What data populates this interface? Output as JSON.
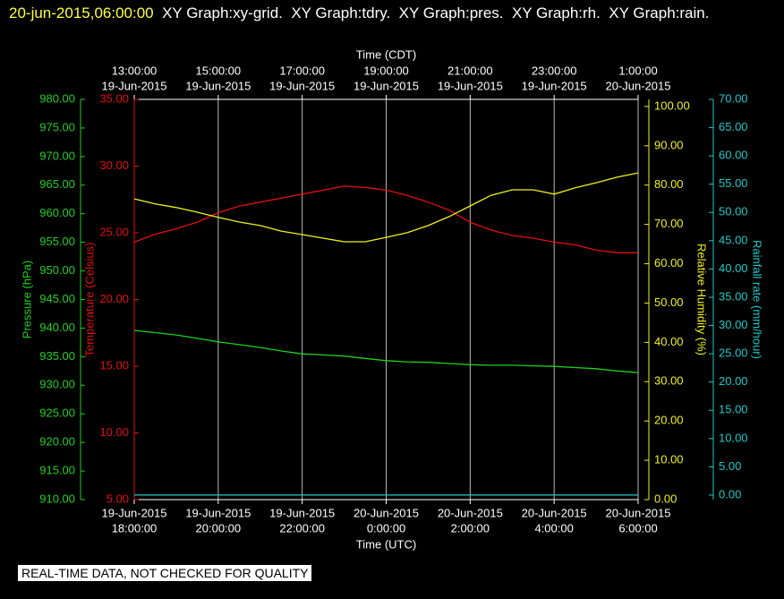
{
  "chart_data": {
    "type": "line",
    "title": "20-jun-2015,06:00:00",
    "subtitle": "XY Graph:xy-grid.  XY Graph:tdry.  XY Graph:pres.  XY Graph:rh.  XY Graph:rain.",
    "footer": "REAL-TIME DATA, NOT CHECKED FOR QUALITY",
    "xlabel": "Time (UTC)",
    "x2label": "Time (CDT)",
    "grid": true,
    "xlim": [
      0,
      12
    ],
    "xticks": [
      {
        "value": 0,
        "label": "18:00:00",
        "date": "19-Jun-2015"
      },
      {
        "value": 2,
        "label": "20:00:00",
        "date": "19-Jun-2015"
      },
      {
        "value": 4,
        "label": "22:00:00",
        "date": "19-Jun-2015"
      },
      {
        "value": 6,
        "label": "0:00:00",
        "date": "20-Jun-2015"
      },
      {
        "value": 8,
        "label": "2:00:00",
        "date": "20-Jun-2015"
      },
      {
        "value": 10,
        "label": "4:00:00",
        "date": "20-Jun-2015"
      },
      {
        "value": 12,
        "label": "6:00:00",
        "date": "20-Jun-2015"
      }
    ],
    "x2ticks": [
      {
        "value": 0,
        "label": "13:00:00",
        "date": "19-Jun-2015"
      },
      {
        "value": 2,
        "label": "15:00:00",
        "date": "19-Jun-2015"
      },
      {
        "value": 4,
        "label": "17:00:00",
        "date": "19-Jun-2015"
      },
      {
        "value": 6,
        "label": "19:00:00",
        "date": "19-Jun-2015"
      },
      {
        "value": 8,
        "label": "21:00:00",
        "date": "19-Jun-2015"
      },
      {
        "value": 10,
        "label": "23:00:00",
        "date": "19-Jun-2015"
      },
      {
        "value": 12,
        "label": "1:00:00",
        "date": "20-Jun-2015"
      }
    ],
    "x": [
      0,
      0.5,
      1,
      1.5,
      2,
      2.5,
      3,
      3.5,
      4,
      4.5,
      5,
      5.5,
      6,
      6.5,
      7,
      7.5,
      8,
      8.5,
      9,
      9.5,
      10,
      10.5,
      11,
      11.5,
      12
    ],
    "series": [
      {
        "name": "Pressure (hPa)",
        "color": "#20d020",
        "ylim": [
          910,
          980
        ],
        "yticks": [
          {
            "value": 910,
            "label": "910.00"
          },
          {
            "value": 915,
            "label": "915.00"
          },
          {
            "value": 920,
            "label": "920.00"
          },
          {
            "value": 925,
            "label": "925.00"
          },
          {
            "value": 930,
            "label": "930.00"
          },
          {
            "value": 935,
            "label": "935.00"
          },
          {
            "value": 940,
            "label": "940.00"
          },
          {
            "value": 945,
            "label": "945.00"
          },
          {
            "value": 950,
            "label": "950.00"
          },
          {
            "value": 955,
            "label": "955.00"
          },
          {
            "value": 960,
            "label": "960.00"
          },
          {
            "value": 965,
            "label": "965.00"
          },
          {
            "value": 970,
            "label": "970.00"
          },
          {
            "value": 975,
            "label": "975.00"
          },
          {
            "value": 980,
            "label": "980.00"
          }
        ],
        "values": [
          939.6,
          939.2,
          938.8,
          938.2,
          937.6,
          937.1,
          936.6,
          936.0,
          935.5,
          935.3,
          935.1,
          934.7,
          934.3,
          934.1,
          934.0,
          933.8,
          933.6,
          933.5,
          933.5,
          933.4,
          933.3,
          933.1,
          932.9,
          932.5,
          932.2
        ]
      },
      {
        "name": "Temperature (Celsius)",
        "color": "#e01010",
        "ylim": [
          5,
          35
        ],
        "yticks": [
          {
            "value": 5,
            "label": "5.00"
          },
          {
            "value": 10,
            "label": "10.00"
          },
          {
            "value": 15,
            "label": "15.00"
          },
          {
            "value": 20,
            "label": "20.00"
          },
          {
            "value": 25,
            "label": "25.00"
          },
          {
            "value": 30,
            "label": "30.00"
          },
          {
            "value": 35,
            "label": "35.00"
          }
        ],
        "values": [
          24.3,
          24.9,
          25.3,
          25.8,
          26.5,
          27.0,
          27.3,
          27.6,
          27.9,
          28.2,
          28.5,
          28.4,
          28.2,
          27.8,
          27.3,
          26.7,
          25.8,
          25.2,
          24.8,
          24.6,
          24.3,
          24.1,
          23.7,
          23.5,
          23.5
        ]
      },
      {
        "name": "Relative Humidity (%)",
        "color": "#f0f020",
        "ylim": [
          0,
          101.8
        ],
        "yticks": [
          {
            "value": 0,
            "label": "0.00"
          },
          {
            "value": 10,
            "label": "10.00"
          },
          {
            "value": 20,
            "label": "20.00"
          },
          {
            "value": 30,
            "label": "30.00"
          },
          {
            "value": 40,
            "label": "40.00"
          },
          {
            "value": 50,
            "label": "50.00"
          },
          {
            "value": 60,
            "label": "60.00"
          },
          {
            "value": 70,
            "label": "70.00"
          },
          {
            "value": 80,
            "label": "80.00"
          },
          {
            "value": 90,
            "label": "90.00"
          },
          {
            "value": 100,
            "label": "100.00"
          }
        ],
        "values": [
          76.5,
          75.2,
          74.3,
          73.1,
          71.8,
          70.6,
          69.7,
          68.3,
          67.4,
          66.5,
          65.6,
          65.6,
          66.7,
          67.9,
          69.7,
          72.0,
          74.7,
          77.4,
          78.8,
          78.8,
          77.7,
          79.3,
          80.6,
          82.0,
          83.1
        ]
      },
      {
        "name": "Rainfall rate (mm/hour)",
        "color": "#20c8c8",
        "ylim": [
          -0.8,
          70
        ],
        "yticks": [
          {
            "value": 0,
            "label": "0.00"
          },
          {
            "value": 5,
            "label": "5.00"
          },
          {
            "value": 10,
            "label": "10.00"
          },
          {
            "value": 15,
            "label": "15.00"
          },
          {
            "value": 20,
            "label": "20.00"
          },
          {
            "value": 25,
            "label": "25.00"
          },
          {
            "value": 30,
            "label": "30.00"
          },
          {
            "value": 35,
            "label": "35.00"
          },
          {
            "value": 40,
            "label": "40.00"
          },
          {
            "value": 45,
            "label": "45.00"
          },
          {
            "value": 50,
            "label": "50.00"
          },
          {
            "value": 55,
            "label": "55.00"
          },
          {
            "value": 60,
            "label": "60.00"
          },
          {
            "value": 65,
            "label": "65.00"
          },
          {
            "value": 70,
            "label": "70.00"
          }
        ],
        "values": [
          0,
          0,
          0,
          0,
          0,
          0,
          0,
          0,
          0,
          0,
          0,
          0,
          0,
          0,
          0,
          0,
          0,
          0,
          0,
          0,
          0,
          0,
          0,
          0,
          0
        ]
      }
    ]
  }
}
